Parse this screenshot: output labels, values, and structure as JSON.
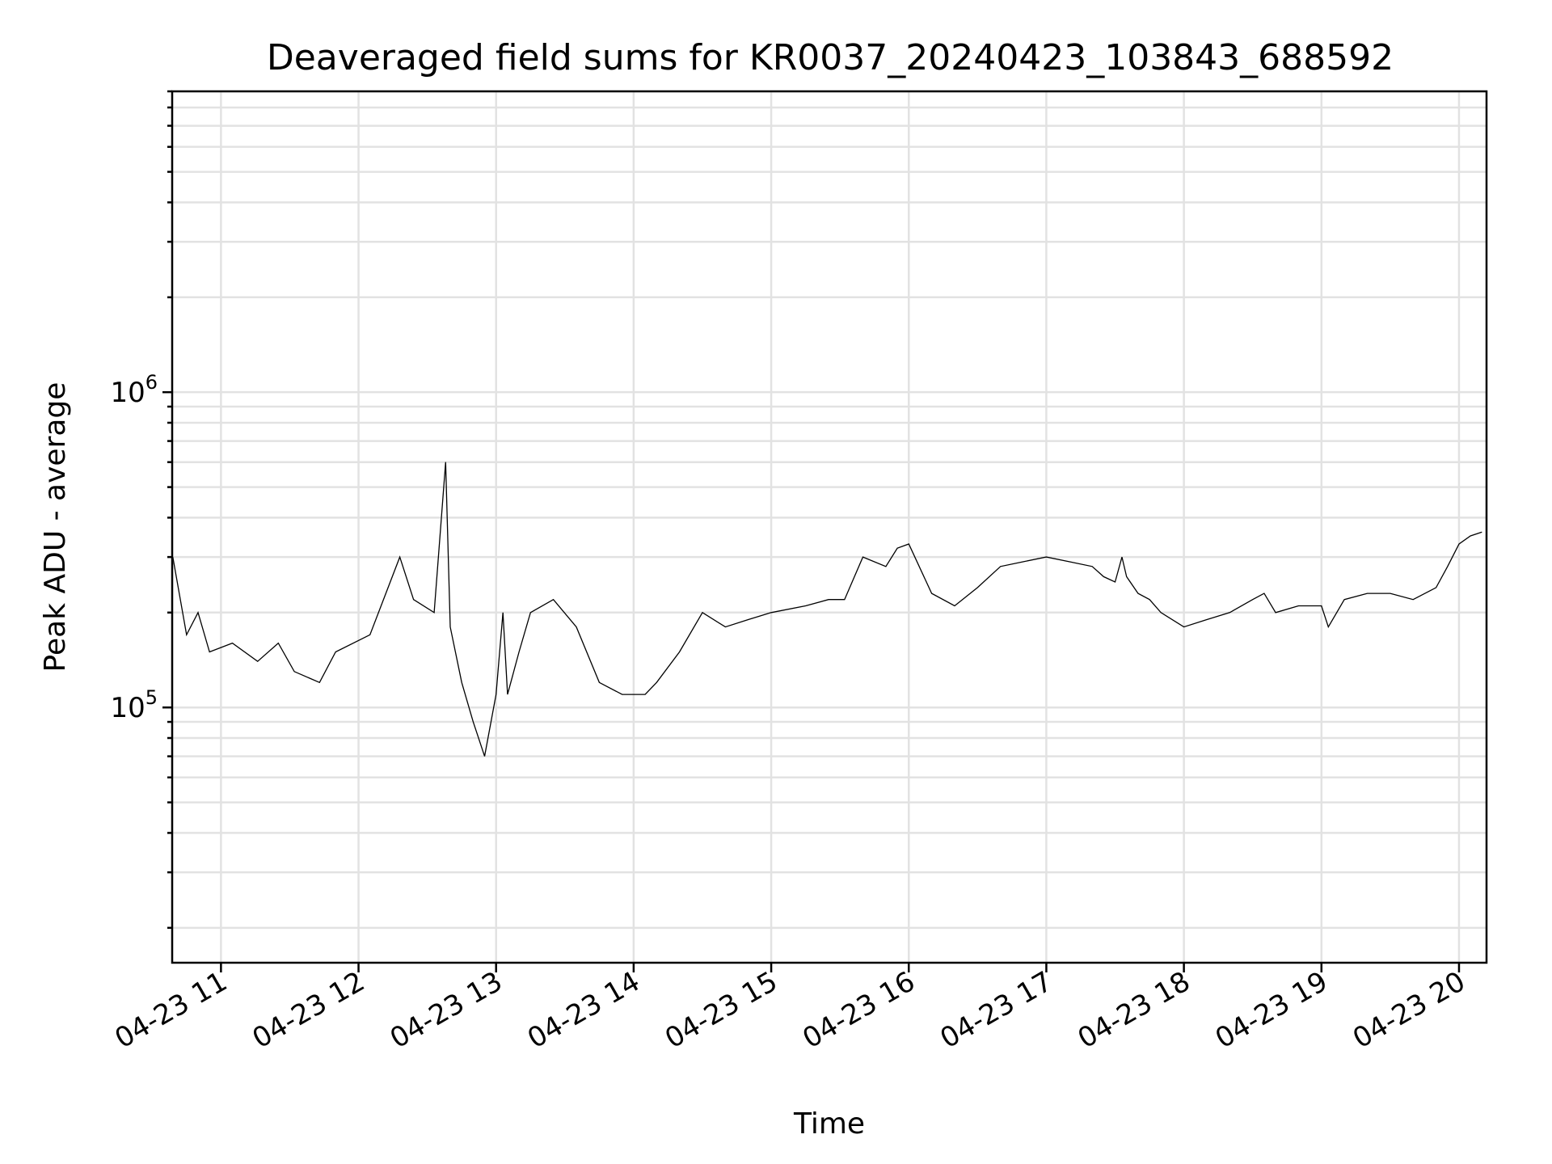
{
  "chart_data": {
    "type": "line",
    "title": "Deaveraged field sums for KR0037_20240423_103843_688592",
    "xlabel": "Time",
    "ylabel": "Peak ADU - average",
    "yscale": "log",
    "grid": "both",
    "legend": "none",
    "line_color": "#000000",
    "xlim": [
      "2024-04-23 10:38:43",
      "2024-04-23 20:12:00"
    ],
    "ylim": [
      15500,
      9000000
    ],
    "x_ticks": [
      "04-23 11",
      "04-23 12",
      "04-23 13",
      "04-23 14",
      "04-23 15",
      "04-23 16",
      "04-23 17",
      "04-23 18",
      "04-23 19",
      "04-23 20"
    ],
    "y_ticks": [
      {
        "base": "10",
        "exp": "5",
        "value": 100000
      },
      {
        "base": "10",
        "exp": "6",
        "value": 1000000
      }
    ],
    "series": [
      {
        "x": [
          "2024-04-23 10:39",
          "2024-04-23 10:45",
          "2024-04-23 10:50",
          "2024-04-23 10:55",
          "2024-04-23 11:05",
          "2024-04-23 11:16",
          "2024-04-23 11:25",
          "2024-04-23 11:32",
          "2024-04-23 11:43",
          "2024-04-23 11:50",
          "2024-04-23 12:05",
          "2024-04-23 12:18",
          "2024-04-23 12:24",
          "2024-04-23 12:33",
          "2024-04-23 12:38",
          "2024-04-23 12:40",
          "2024-04-23 12:45",
          "2024-04-23 12:50",
          "2024-04-23 12:55",
          "2024-04-23 13:00",
          "2024-04-23 13:03",
          "2024-04-23 13:05",
          "2024-04-23 13:10",
          "2024-04-23 13:15",
          "2024-04-23 13:25",
          "2024-04-23 13:35",
          "2024-04-23 13:45",
          "2024-04-23 13:55",
          "2024-04-23 14:05",
          "2024-04-23 14:10",
          "2024-04-23 14:20",
          "2024-04-23 14:30",
          "2024-04-23 14:40",
          "2024-04-23 14:50",
          "2024-04-23 15:00",
          "2024-04-23 15:15",
          "2024-04-23 15:25",
          "2024-04-23 15:32",
          "2024-04-23 15:40",
          "2024-04-23 15:50",
          "2024-04-23 15:55",
          "2024-04-23 16:00",
          "2024-04-23 16:10",
          "2024-04-23 16:20",
          "2024-04-23 16:30",
          "2024-04-23 16:40",
          "2024-04-23 16:50",
          "2024-04-23 17:00",
          "2024-04-23 17:10",
          "2024-04-23 17:20",
          "2024-04-23 17:25",
          "2024-04-23 17:30",
          "2024-04-23 17:33",
          "2024-04-23 17:35",
          "2024-04-23 17:40",
          "2024-04-23 17:45",
          "2024-04-23 17:50",
          "2024-04-23 18:00",
          "2024-04-23 18:10",
          "2024-04-23 18:20",
          "2024-04-23 18:30",
          "2024-04-23 18:35",
          "2024-04-23 18:40",
          "2024-04-23 18:50",
          "2024-04-23 19:00",
          "2024-04-23 19:03",
          "2024-04-23 19:10",
          "2024-04-23 19:20",
          "2024-04-23 19:30",
          "2024-04-23 19:40",
          "2024-04-23 19:50",
          "2024-04-23 19:55",
          "2024-04-23 20:00",
          "2024-04-23 20:05",
          "2024-04-23 20:10"
        ],
        "y": [
          300000,
          170000,
          200000,
          150000,
          160000,
          140000,
          160000,
          130000,
          120000,
          150000,
          170000,
          300000,
          220000,
          200000,
          600000,
          180000,
          120000,
          90000,
          70000,
          110000,
          200000,
          110000,
          150000,
          200000,
          220000,
          180000,
          120000,
          110000,
          110000,
          120000,
          150000,
          200000,
          180000,
          190000,
          200000,
          210000,
          220000,
          220000,
          300000,
          280000,
          320000,
          330000,
          230000,
          210000,
          240000,
          280000,
          290000,
          300000,
          290000,
          280000,
          260000,
          250000,
          300000,
          260000,
          230000,
          220000,
          200000,
          180000,
          190000,
          200000,
          220000,
          230000,
          200000,
          210000,
          210000,
          180000,
          220000,
          230000,
          230000,
          220000,
          240000,
          280000,
          330000,
          350000,
          360000
        ]
      }
    ]
  }
}
